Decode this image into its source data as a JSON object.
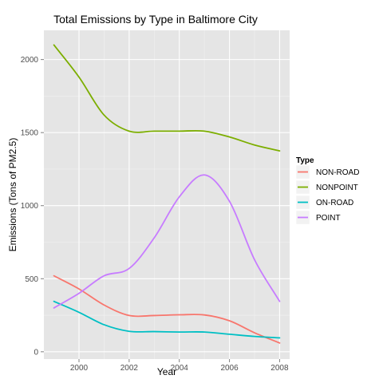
{
  "chart_data": {
    "type": "line",
    "title": "Total Emissions by Type in Baltimore City",
    "xlabel": "Year",
    "ylabel": "Emissions  (Tons of PM2.5)",
    "xlim": [
      1998.6,
      2008.4
    ],
    "ylim": [
      -50,
      2200
    ],
    "x_ticks": [
      2000,
      2002,
      2004,
      2006,
      2008
    ],
    "y_ticks": [
      0,
      500,
      1000,
      1500,
      2000
    ],
    "grid": true,
    "background": "#e5e5e5",
    "legend": {
      "title": "Type",
      "position": "right",
      "entries": [
        "NON-ROAD",
        "NONPOINT",
        "ON-ROAD",
        "POINT"
      ]
    },
    "series": [
      {
        "name": "NON-ROAD",
        "color": "#f8766d",
        "x": [
          1999,
          2000,
          2001,
          2002,
          2003,
          2004,
          2005,
          2006,
          2007,
          2008
        ],
        "y": [
          520,
          430,
          320,
          248,
          248,
          253,
          252,
          212,
          130,
          60
        ]
      },
      {
        "name": "NONPOINT",
        "color": "#7cae00",
        "x": [
          1999,
          2000,
          2001,
          2002,
          2003,
          2004,
          2005,
          2006,
          2007,
          2008
        ],
        "y": [
          2100,
          1880,
          1620,
          1510,
          1510,
          1510,
          1510,
          1470,
          1415,
          1375
        ]
      },
      {
        "name": "ON-ROAD",
        "color": "#00bfc4",
        "x": [
          1999,
          2000,
          2001,
          2002,
          2003,
          2004,
          2005,
          2006,
          2007,
          2008
        ],
        "y": [
          345,
          270,
          185,
          140,
          138,
          135,
          135,
          120,
          105,
          95
        ]
      },
      {
        "name": "POINT",
        "color": "#c77cff",
        "x": [
          1999,
          2000,
          2001,
          2002,
          2003,
          2004,
          2005,
          2006,
          2007,
          2008
        ],
        "y": [
          300,
          400,
          520,
          570,
          780,
          1060,
          1210,
          1030,
          630,
          345
        ]
      }
    ]
  }
}
